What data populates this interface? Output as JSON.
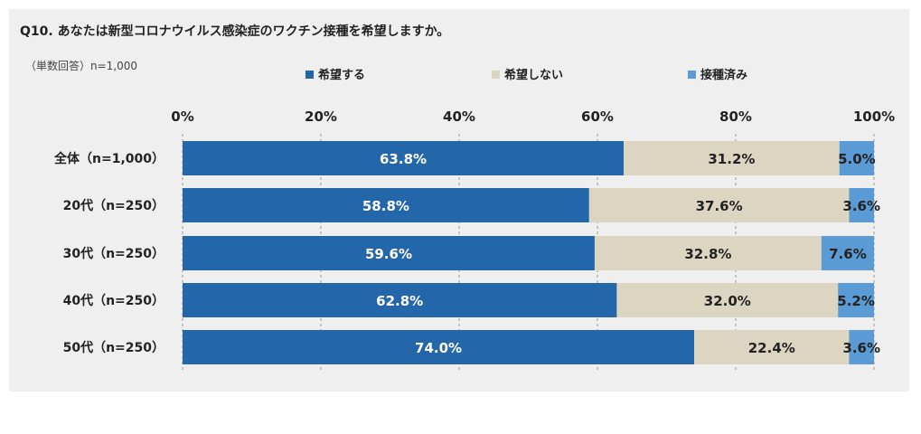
{
  "header": {
    "title": "Q10. あなたは新型コロナウイルス感染症のワクチン接種を希望しますか。",
    "base_note": "（単数回答）n=1,000"
  },
  "colors": {
    "series": [
      "#2466aa",
      "#dcd5c1",
      "#5b9bd5"
    ],
    "label_text": [
      "#ffffff",
      "#222222",
      "#222222"
    ],
    "grid": "#9a9a9a",
    "panel": "#efefef"
  },
  "chart_data": {
    "type": "bar",
    "orientation": "horizontal",
    "stacked": true,
    "title": "Q10. あなたは新型コロナウイルス感染症のワクチン接種を希望しますか。",
    "xlim": [
      0,
      100
    ],
    "xticks": [
      0,
      20,
      40,
      60,
      80,
      100
    ],
    "xtick_labels": [
      "0%",
      "20%",
      "40%",
      "60%",
      "80%",
      "100%"
    ],
    "legend_position": "top",
    "categories": [
      "全体（n=1,000）",
      "20代（n=250）",
      "30代（n=250）",
      "40代（n=250）",
      "50代（n=250）"
    ],
    "series": [
      {
        "name": "希望する",
        "values": [
          63.8,
          58.8,
          59.6,
          62.8,
          74.0
        ],
        "labels": [
          "63.8%",
          "58.8%",
          "59.6%",
          "62.8%",
          "74.0%"
        ]
      },
      {
        "name": "希望しない",
        "values": [
          31.2,
          37.6,
          32.8,
          32.0,
          22.4
        ],
        "labels": [
          "31.2%",
          "37.6%",
          "32.8%",
          "32.0%",
          "22.4%"
        ]
      },
      {
        "name": "接種済み",
        "values": [
          5.0,
          3.6,
          7.6,
          5.2,
          3.6
        ],
        "labels": [
          "5.0%",
          "3.6%",
          "7.6%",
          "5.2%",
          "3.6%"
        ]
      }
    ]
  }
}
